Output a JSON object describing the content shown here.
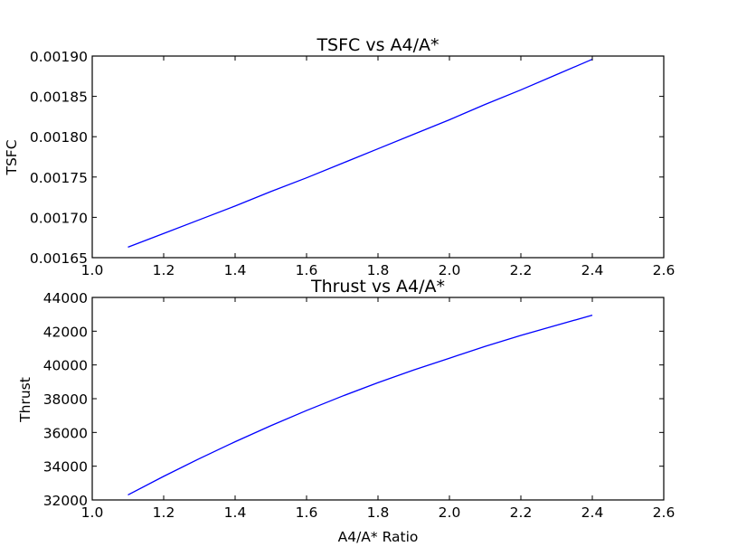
{
  "chart_data": [
    {
      "type": "line",
      "title": "TSFC vs A4/A*",
      "xlabel": "",
      "ylabel": "TSFC",
      "xlim": [
        1.0,
        2.6
      ],
      "ylim": [
        0.00165,
        0.0019
      ],
      "xticks": [
        1.0,
        1.2,
        1.4,
        1.6,
        1.8,
        2.0,
        2.2,
        2.4,
        2.6
      ],
      "xtick_labels": [
        "1.0",
        "1.2",
        "1.4",
        "1.6",
        "1.8",
        "2.0",
        "2.2",
        "2.4",
        "2.6"
      ],
      "yticks": [
        0.00165,
        0.0017,
        0.00175,
        0.0018,
        0.00185,
        0.0019
      ],
      "ytick_labels": [
        "0.00165",
        "0.00170",
        "0.00175",
        "0.00180",
        "0.00185",
        "0.00190"
      ],
      "grid": false,
      "series": [
        {
          "color": "#0000ff",
          "x": [
            1.1,
            1.2,
            1.3,
            1.4,
            1.5,
            1.6,
            1.7,
            1.8,
            1.9,
            2.0,
            2.1,
            2.2,
            2.3,
            2.4
          ],
          "y": [
            0.001663,
            0.00168,
            0.001697,
            0.001714,
            0.001732,
            0.001749,
            0.001767,
            0.001785,
            0.001803,
            0.001821,
            0.00184,
            0.001858,
            0.001877,
            0.001896
          ]
        }
      ]
    },
    {
      "type": "line",
      "title": "Thrust vs A4/A*",
      "xlabel": "A4/A* Ratio",
      "ylabel": "Thrust",
      "xlim": [
        1.0,
        2.6
      ],
      "ylim": [
        32000,
        44000
      ],
      "xticks": [
        1.0,
        1.2,
        1.4,
        1.6,
        1.8,
        2.0,
        2.2,
        2.4,
        2.6
      ],
      "xtick_labels": [
        "1.0",
        "1.2",
        "1.4",
        "1.6",
        "1.8",
        "2.0",
        "2.2",
        "2.4",
        "2.6"
      ],
      "yticks": [
        32000,
        34000,
        36000,
        38000,
        40000,
        42000,
        44000
      ],
      "ytick_labels": [
        "32000",
        "34000",
        "36000",
        "38000",
        "40000",
        "42000",
        "44000"
      ],
      "grid": false,
      "series": [
        {
          "color": "#0000ff",
          "x": [
            1.1,
            1.2,
            1.3,
            1.4,
            1.5,
            1.6,
            1.7,
            1.8,
            1.9,
            2.0,
            2.1,
            2.2,
            2.3,
            2.4
          ],
          "y": [
            32300,
            33400,
            34450,
            35450,
            36400,
            37300,
            38150,
            38950,
            39700,
            40400,
            41100,
            41750,
            42350,
            42950
          ]
        }
      ]
    }
  ]
}
